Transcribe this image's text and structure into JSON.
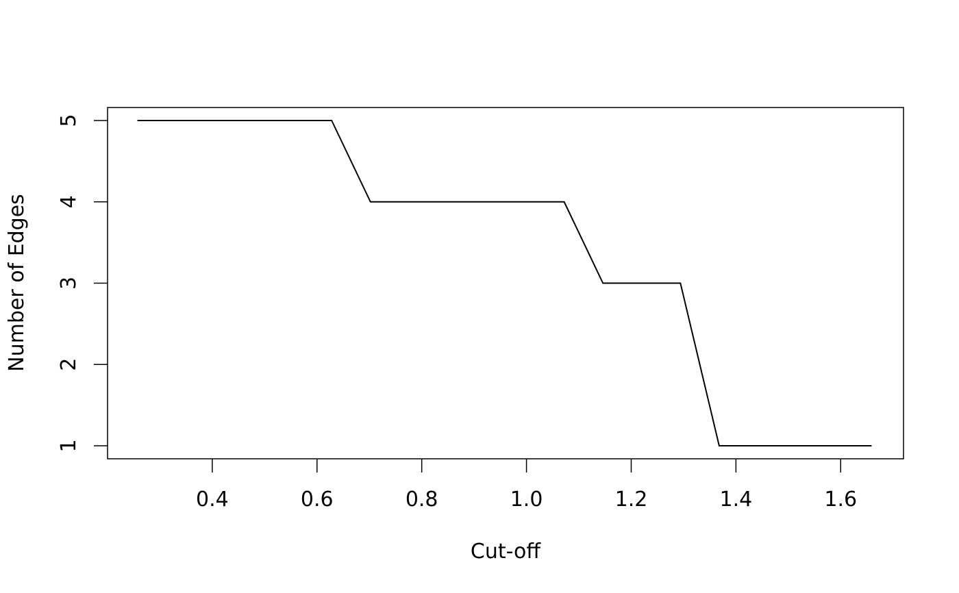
{
  "chart_data": {
    "type": "line",
    "title": "",
    "xlabel": "Cut-off",
    "ylabel": "Number of Edges",
    "xlim": [
      0.2,
      1.72
    ],
    "ylim": [
      0.84,
      5.16
    ],
    "x_ticks": [
      0.4,
      0.6,
      0.8,
      1.0,
      1.2,
      1.4,
      1.6
    ],
    "x_tick_labels": [
      "0.4",
      "0.6",
      "0.8",
      "1.0",
      "1.2",
      "1.4",
      "1.6"
    ],
    "y_ticks": [
      1,
      2,
      3,
      4,
      5
    ],
    "y_tick_labels": [
      "1",
      "2",
      "3",
      "4",
      "5"
    ],
    "grid": false,
    "legend": "none",
    "line_color": "#000000",
    "series": [
      {
        "x": [
          0.257,
          0.331,
          0.405,
          0.479,
          0.553,
          0.628,
          0.702,
          0.776,
          0.85,
          0.924,
          0.998,
          1.072,
          1.146,
          1.22,
          1.294,
          1.368,
          1.442,
          1.516,
          1.59,
          1.659
        ],
        "y": [
          5,
          5,
          5,
          5,
          5,
          5,
          4,
          4,
          4,
          4,
          4,
          4,
          3,
          3,
          3,
          1,
          1,
          1,
          1,
          1
        ]
      }
    ]
  }
}
